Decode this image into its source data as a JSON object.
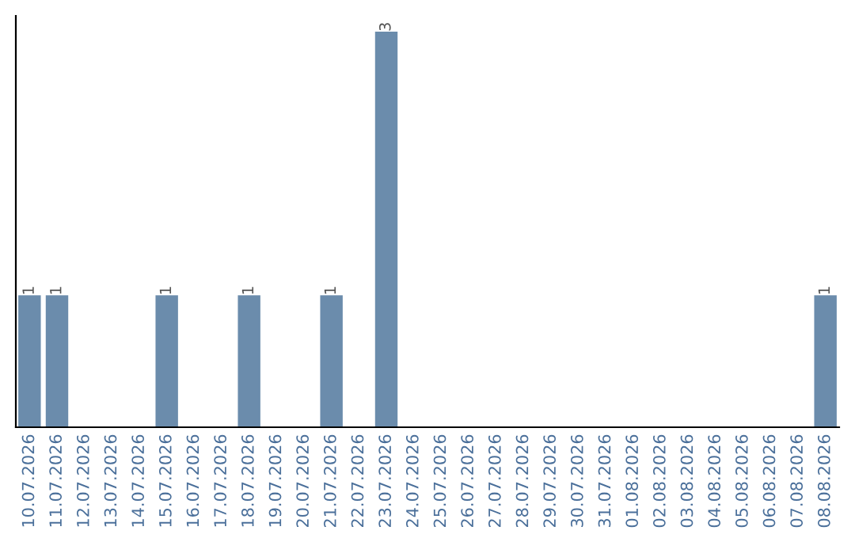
{
  "chart_data": {
    "type": "bar",
    "categories": [
      "10.07.2026",
      "11.07.2026",
      "12.07.2026",
      "13.07.2026",
      "14.07.2026",
      "15.07.2026",
      "16.07.2026",
      "17.07.2026",
      "18.07.2026",
      "19.07.2026",
      "20.07.2026",
      "21.07.2026",
      "22.07.2026",
      "23.07.2026",
      "24.07.2026",
      "25.07.2026",
      "26.07.2026",
      "27.07.2026",
      "28.07.2026",
      "29.07.2026",
      "30.07.2026",
      "31.07.2026",
      "01.08.2026",
      "02.08.2026",
      "03.08.2026",
      "04.08.2026",
      "05.08.2026",
      "06.08.2026",
      "07.08.2026",
      "08.08.2026"
    ],
    "values": [
      1,
      1,
      0,
      0,
      0,
      1,
      0,
      0,
      1,
      0,
      0,
      1,
      0,
      3,
      0,
      0,
      0,
      0,
      0,
      0,
      0,
      0,
      0,
      0,
      0,
      0,
      0,
      0,
      0,
      1
    ],
    "color": "#6b8cac",
    "value_labels": [
      "1",
      "1",
      null,
      null,
      null,
      "1",
      null,
      null,
      "1",
      null,
      null,
      "1",
      null,
      "3",
      null,
      null,
      null,
      null,
      null,
      null,
      null,
      null,
      null,
      null,
      null,
      null,
      null,
      null,
      null,
      "1"
    ],
    "grid": false,
    "legend": false
  }
}
